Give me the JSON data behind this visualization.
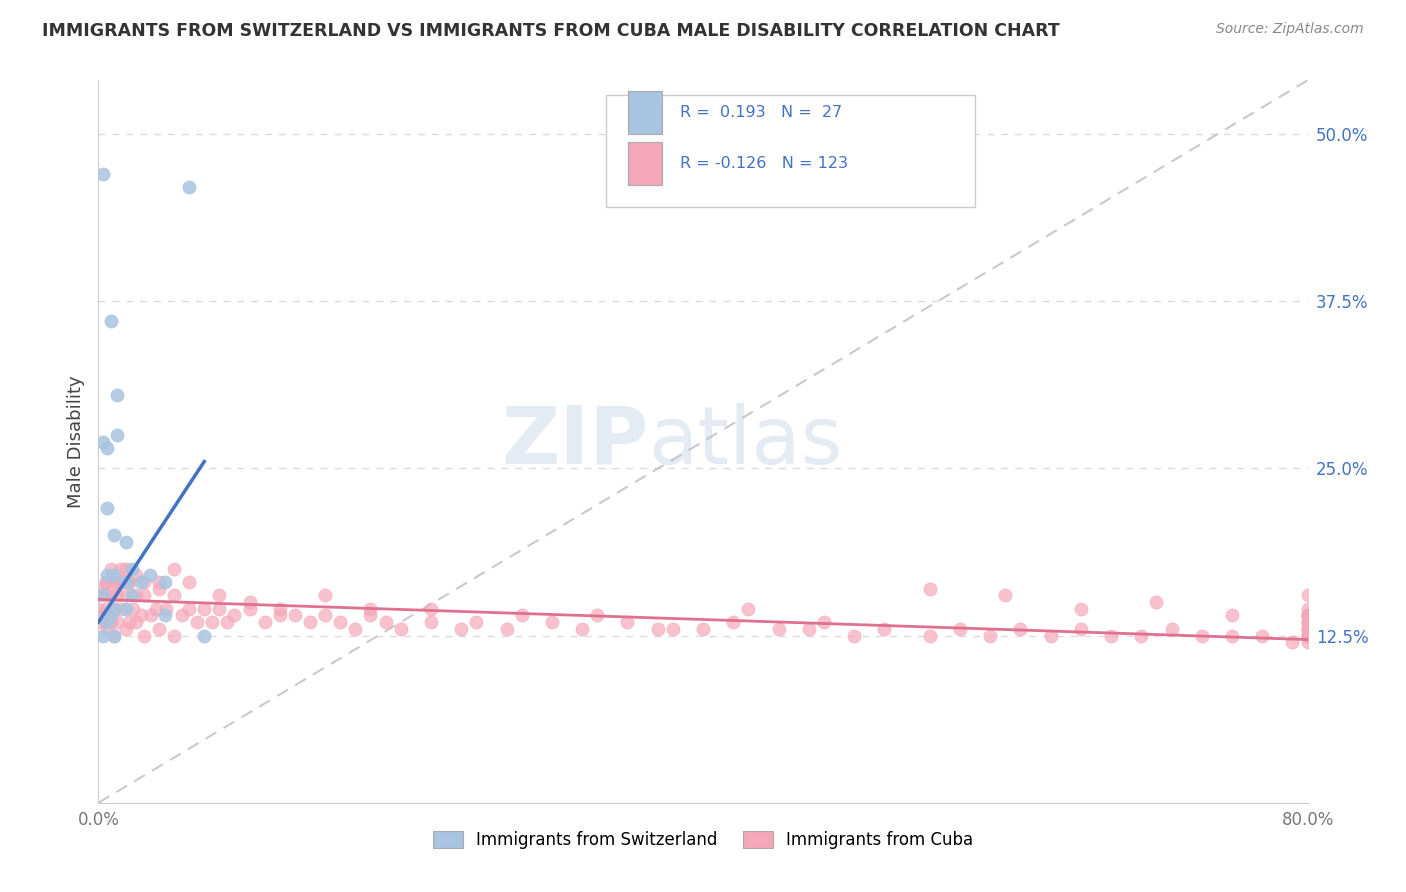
{
  "title": "IMMIGRANTS FROM SWITZERLAND VS IMMIGRANTS FROM CUBA MALE DISABILITY CORRELATION CHART",
  "source_text": "Source: ZipAtlas.com",
  "ylabel": "Male Disability",
  "xlim": [
    0.0,
    0.8
  ],
  "ylim": [
    0.0,
    0.54
  ],
  "x_tick_labels": [
    "0.0%",
    "80.0%"
  ],
  "x_tick_positions": [
    0.0,
    0.8
  ],
  "y_tick_labels_right": [
    "12.5%",
    "25.0%",
    "37.5%",
    "50.0%"
  ],
  "y_tick_values_right": [
    0.125,
    0.25,
    0.375,
    0.5
  ],
  "watermark_zip": "ZIP",
  "watermark_atlas": "atlas",
  "color_swiss": "#a8c4e0",
  "color_cuba": "#f4a7b9",
  "color_swiss_line": "#4472c4",
  "color_cuba_line": "#e07090",
  "color_dash_line": "#b8b8b8",
  "background_color": "#ffffff",
  "grid_color": "#d8d8d8",
  "swiss_x": [
    0.003,
    0.008,
    0.008,
    0.012,
    0.012,
    0.003,
    0.006,
    0.006,
    0.006,
    0.01,
    0.01,
    0.018,
    0.018,
    0.022,
    0.022,
    0.028,
    0.034,
    0.044,
    0.044,
    0.003,
    0.003,
    0.006,
    0.01,
    0.01,
    0.018,
    0.06,
    0.07
  ],
  "swiss_y": [
    0.47,
    0.36,
    0.14,
    0.305,
    0.275,
    0.27,
    0.265,
    0.22,
    0.17,
    0.2,
    0.17,
    0.195,
    0.165,
    0.175,
    0.155,
    0.165,
    0.17,
    0.165,
    0.14,
    0.155,
    0.125,
    0.135,
    0.145,
    0.125,
    0.145,
    0.46,
    0.125
  ],
  "cuba_x": [
    0.0,
    0.0,
    0.0,
    0.003,
    0.003,
    0.005,
    0.005,
    0.005,
    0.006,
    0.006,
    0.008,
    0.008,
    0.01,
    0.01,
    0.01,
    0.012,
    0.012,
    0.015,
    0.015,
    0.018,
    0.018,
    0.018,
    0.02,
    0.02,
    0.023,
    0.025,
    0.025,
    0.028,
    0.03,
    0.03,
    0.035,
    0.038,
    0.04,
    0.04,
    0.045,
    0.05,
    0.05,
    0.055,
    0.06,
    0.065,
    0.07,
    0.075,
    0.08,
    0.085,
    0.09,
    0.1,
    0.11,
    0.12,
    0.13,
    0.14,
    0.15,
    0.16,
    0.17,
    0.18,
    0.19,
    0.2,
    0.22,
    0.24,
    0.25,
    0.27,
    0.3,
    0.32,
    0.35,
    0.37,
    0.4,
    0.42,
    0.45,
    0.47,
    0.5,
    0.52,
    0.55,
    0.57,
    0.59,
    0.61,
    0.63,
    0.65,
    0.67,
    0.69,
    0.71,
    0.73,
    0.75,
    0.77,
    0.79,
    0.005,
    0.008,
    0.012,
    0.015,
    0.02,
    0.025,
    0.03,
    0.04,
    0.05,
    0.06,
    0.08,
    0.1,
    0.12,
    0.15,
    0.18,
    0.22,
    0.28,
    0.33,
    0.38,
    0.43,
    0.48,
    0.55,
    0.6,
    0.65,
    0.7,
    0.75,
    0.8,
    0.8,
    0.8,
    0.8,
    0.8,
    0.8,
    0.8,
    0.8,
    0.8,
    0.8,
    0.8,
    0.8,
    0.8,
    0.8,
    0.8,
    0.8,
    0.8
  ],
  "cuba_y": [
    0.155,
    0.145,
    0.135,
    0.16,
    0.14,
    0.165,
    0.145,
    0.135,
    0.155,
    0.13,
    0.155,
    0.135,
    0.165,
    0.145,
    0.125,
    0.155,
    0.135,
    0.165,
    0.145,
    0.175,
    0.155,
    0.13,
    0.165,
    0.135,
    0.145,
    0.155,
    0.135,
    0.14,
    0.155,
    0.125,
    0.14,
    0.145,
    0.16,
    0.13,
    0.145,
    0.155,
    0.125,
    0.14,
    0.145,
    0.135,
    0.145,
    0.135,
    0.145,
    0.135,
    0.14,
    0.145,
    0.135,
    0.14,
    0.14,
    0.135,
    0.14,
    0.135,
    0.13,
    0.14,
    0.135,
    0.13,
    0.135,
    0.13,
    0.135,
    0.13,
    0.135,
    0.13,
    0.135,
    0.13,
    0.13,
    0.135,
    0.13,
    0.13,
    0.125,
    0.13,
    0.125,
    0.13,
    0.125,
    0.13,
    0.125,
    0.13,
    0.125,
    0.125,
    0.13,
    0.125,
    0.125,
    0.125,
    0.12,
    0.165,
    0.175,
    0.165,
    0.175,
    0.165,
    0.17,
    0.165,
    0.165,
    0.175,
    0.165,
    0.155,
    0.15,
    0.145,
    0.155,
    0.145,
    0.145,
    0.14,
    0.14,
    0.13,
    0.145,
    0.135,
    0.16,
    0.155,
    0.145,
    0.15,
    0.14,
    0.155,
    0.14,
    0.135,
    0.14,
    0.135,
    0.14,
    0.135,
    0.14,
    0.13,
    0.145,
    0.13,
    0.125,
    0.13,
    0.125,
    0.125,
    0.12,
    0.125
  ],
  "swiss_line_x": [
    0.0,
    0.07
  ],
  "swiss_line_y": [
    0.135,
    0.255
  ],
  "cuba_line_x": [
    0.0,
    0.8
  ],
  "cuba_line_y": [
    0.152,
    0.122
  ],
  "dash_line_x": [
    0.0,
    0.8
  ],
  "dash_line_y": [
    0.0,
    0.54
  ]
}
